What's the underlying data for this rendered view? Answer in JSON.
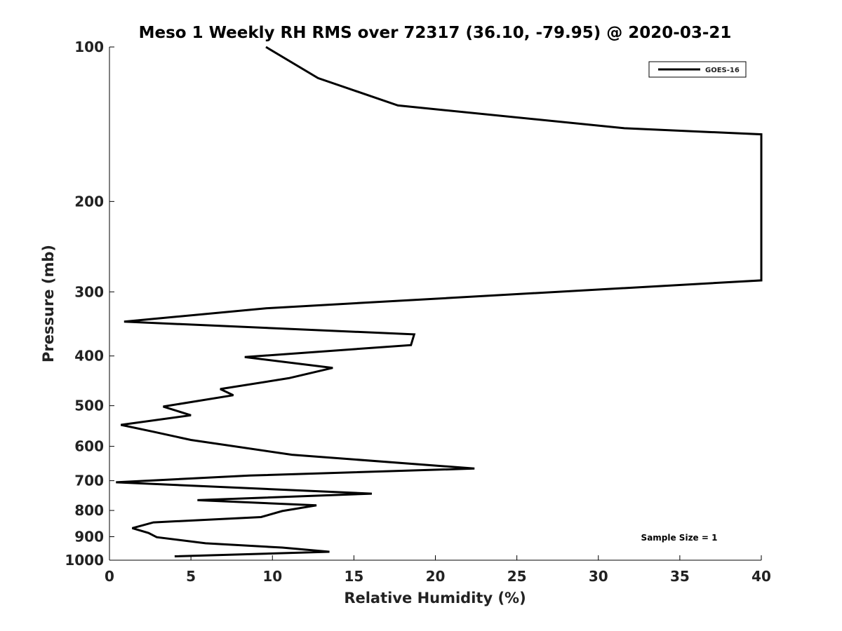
{
  "chart_data": {
    "type": "line",
    "title": "Meso 1 Weekly RH RMS over 72317 (36.10, -79.95) @ 2020-03-21",
    "xlabel": "Relative Humidity (%)",
    "ylabel": "Pressure (mb)",
    "xlim": [
      0,
      40
    ],
    "ylim": [
      1000,
      100
    ],
    "y_scale": "log",
    "x_ticks": [
      0,
      5,
      10,
      15,
      20,
      25,
      30,
      35,
      40
    ],
    "x_tick_labels": [
      "0",
      "5",
      "10",
      "15",
      "20",
      "25",
      "30",
      "35",
      "40"
    ],
    "y_ticks": [
      100,
      200,
      300,
      400,
      500,
      600,
      700,
      800,
      900,
      1000
    ],
    "y_tick_labels": [
      "100",
      "200",
      "300",
      "400",
      "500",
      "600",
      "700",
      "800",
      "900",
      "1000"
    ],
    "grid": false,
    "legend_position": "top-right",
    "annotation": "Sample Size = 1",
    "series": [
      {
        "name": "GOES-16",
        "color": "#000000",
        "points": [
          [
            9.6,
            100
          ],
          [
            12.8,
            115
          ],
          [
            17.7,
            130
          ],
          [
            31.6,
            144
          ],
          [
            40.0,
            148
          ],
          [
            40.0,
            285
          ],
          [
            9.6,
            323
          ],
          [
            0.9,
            343
          ],
          [
            18.7,
            363
          ],
          [
            18.5,
            381
          ],
          [
            8.3,
            402
          ],
          [
            13.7,
            422
          ],
          [
            11.0,
            442
          ],
          [
            6.8,
            464
          ],
          [
            7.6,
            477
          ],
          [
            3.3,
            502
          ],
          [
            5.0,
            522
          ],
          [
            0.7,
            545
          ],
          [
            2.7,
            562
          ],
          [
            5.0,
            583
          ],
          [
            11.2,
            623
          ],
          [
            22.4,
            663
          ],
          [
            8.6,
            684
          ],
          [
            0.4,
            705
          ],
          [
            16.1,
            742
          ],
          [
            5.4,
            764
          ],
          [
            12.7,
            782
          ],
          [
            10.6,
            802
          ],
          [
            9.3,
            824
          ],
          [
            2.7,
            844
          ],
          [
            1.4,
            866
          ],
          [
            2.4,
            885
          ],
          [
            2.9,
            902
          ],
          [
            5.9,
            927
          ],
          [
            10.6,
            945
          ],
          [
            13.5,
            963
          ],
          [
            4.0,
            983
          ]
        ]
      }
    ]
  }
}
